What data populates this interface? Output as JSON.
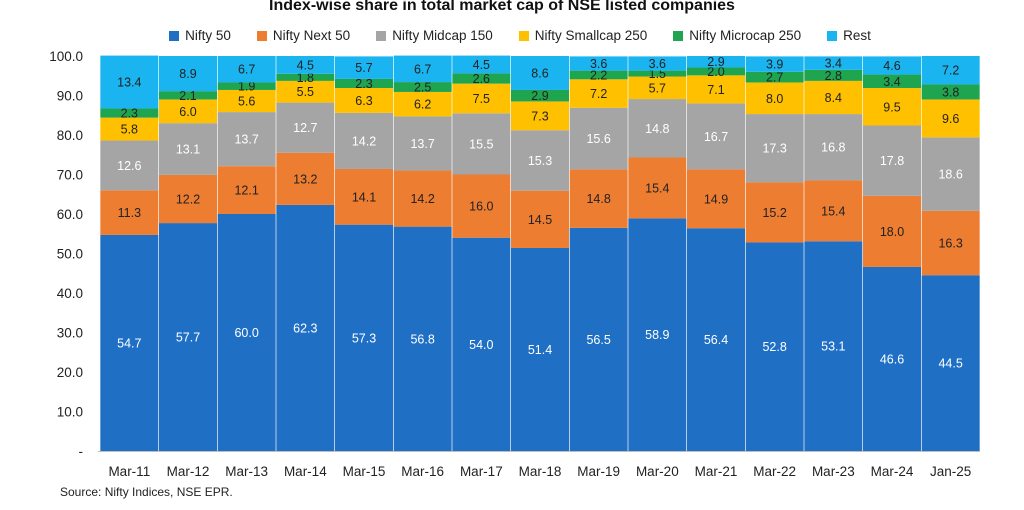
{
  "chart_data": {
    "type": "bar",
    "stacked": true,
    "title": "Index-wise share in total market cap of NSE listed companies",
    "xlabel": "",
    "ylabel": "",
    "ylim": [
      0,
      100
    ],
    "yticks": [
      0,
      10,
      20,
      30,
      40,
      50,
      60,
      70,
      80,
      90,
      100
    ],
    "ytick_labels": [
      "-",
      "10.0",
      "20.0",
      "30.0",
      "40.0",
      "50.0",
      "60.0",
      "70.0",
      "80.0",
      "90.0",
      "100.0"
    ],
    "grid": false,
    "legend_position": "top",
    "categories": [
      "Mar-11",
      "Mar-12",
      "Mar-13",
      "Mar-14",
      "Mar-15",
      "Mar-16",
      "Mar-17",
      "Mar-18",
      "Mar-19",
      "Mar-20",
      "Mar-21",
      "Mar-22",
      "Mar-23",
      "Mar-24",
      "Jan-25"
    ],
    "series": [
      {
        "name": "Nifty 50",
        "color": "#1f6fc5",
        "label_color": "#ffffff",
        "values": [
          54.7,
          57.7,
          60.0,
          62.3,
          57.3,
          56.8,
          54.0,
          51.4,
          56.5,
          58.9,
          56.4,
          52.8,
          53.1,
          46.6,
          44.5
        ]
      },
      {
        "name": "Nifty Next 50",
        "color": "#ed7d31",
        "label_color": "#222222",
        "values": [
          11.3,
          12.2,
          12.1,
          13.2,
          14.1,
          14.2,
          16.0,
          14.5,
          14.8,
          15.4,
          14.9,
          15.2,
          15.4,
          18.0,
          16.3
        ]
      },
      {
        "name": "Nifty Midcap 150",
        "color": "#a5a5a5",
        "label_color": "#ffffff",
        "values": [
          12.6,
          13.1,
          13.7,
          12.7,
          14.2,
          13.7,
          15.5,
          15.3,
          15.6,
          14.8,
          16.7,
          17.3,
          16.8,
          17.8,
          18.6
        ]
      },
      {
        "name": "Nifty Smallcap 250",
        "color": "#ffc000",
        "label_color": "#222222",
        "values": [
          5.8,
          6.0,
          5.6,
          5.5,
          6.3,
          6.2,
          7.5,
          7.3,
          7.2,
          5.7,
          7.1,
          8.0,
          8.4,
          9.5,
          9.6
        ]
      },
      {
        "name": "Nifty Microcap 250",
        "color": "#1fa550",
        "label_color": "#222222",
        "values": [
          2.3,
          2.1,
          1.9,
          1.8,
          2.3,
          2.5,
          2.6,
          2.9,
          2.2,
          1.5,
          2.0,
          2.7,
          2.8,
          3.4,
          3.8
        ]
      },
      {
        "name": "Rest",
        "color": "#1ab4f0",
        "label_color": "#222222",
        "values": [
          13.4,
          8.9,
          6.7,
          4.5,
          5.7,
          6.7,
          4.5,
          8.6,
          3.6,
          3.6,
          2.9,
          3.9,
          3.4,
          4.6,
          7.2
        ]
      }
    ],
    "source": "Source: Nifty Indices, NSE EPR."
  }
}
